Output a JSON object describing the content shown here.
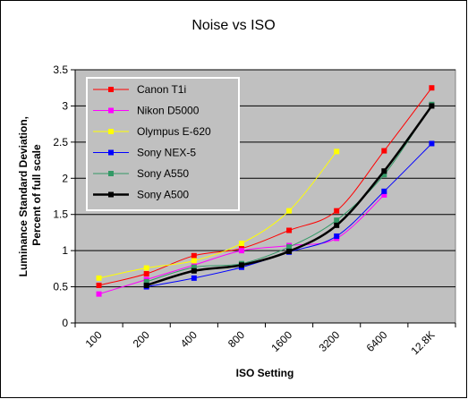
{
  "chart_data": {
    "type": "line",
    "title": "Noise vs ISO",
    "xlabel": "ISO Setting",
    "ylabel": "Luminance Standard Deviation, Percent of full scale",
    "ylabel_lines": [
      "Luminance Standard Deviation,",
      "Percent of full scale"
    ],
    "categories": [
      "100",
      "200",
      "400",
      "800",
      "1600",
      "3200",
      "6400",
      "12.8K"
    ],
    "ylim": [
      0,
      3.5
    ],
    "yticks": [
      "0",
      "0.5",
      "1",
      "1.5",
      "2",
      "2.5",
      "3",
      "3.5"
    ],
    "grid": true,
    "legend": "top-left",
    "series": [
      {
        "name": "Canon T1i",
        "color": "#ff0000",
        "line_width": 1,
        "marker": "square",
        "x": [
          0,
          1,
          2,
          3,
          4,
          5,
          6,
          7
        ],
        "values": [
          0.52,
          0.68,
          0.93,
          1.03,
          1.28,
          1.55,
          2.38,
          3.25
        ]
      },
      {
        "name": "Nikon D5000",
        "color": "#ff00ff",
        "line_width": 1,
        "marker": "square",
        "x": [
          0,
          1,
          2,
          3,
          4,
          5,
          6
        ],
        "values": [
          0.4,
          0.6,
          0.8,
          1.0,
          1.07,
          1.17,
          1.77
        ]
      },
      {
        "name": "Olympus E-620",
        "color": "#ffff00",
        "line_width": 1,
        "marker": "square",
        "x": [
          0,
          1,
          2,
          3,
          4,
          5
        ],
        "values": [
          0.62,
          0.76,
          0.86,
          1.1,
          1.55,
          2.37
        ]
      },
      {
        "name": "Sony NEX-5",
        "color": "#0000ff",
        "line_width": 1,
        "marker": "square",
        "x": [
          1,
          2,
          3,
          4,
          5,
          6,
          7
        ],
        "values": [
          0.5,
          0.62,
          0.77,
          0.98,
          1.2,
          1.82,
          2.48
        ]
      },
      {
        "name": "Sony A550",
        "color": "#339966",
        "line_width": 1,
        "marker": "square",
        "x": [
          1,
          2,
          3,
          4,
          5,
          6,
          7
        ],
        "values": [
          0.57,
          0.77,
          0.82,
          1.05,
          1.42,
          2.05,
          3.02
        ]
      },
      {
        "name": "Sony A500",
        "color": "#000000",
        "line_width": 2.5,
        "marker": "square",
        "x": [
          1,
          2,
          3,
          4,
          5,
          6,
          7
        ],
        "values": [
          0.52,
          0.72,
          0.8,
          0.99,
          1.35,
          2.1,
          3.0
        ]
      }
    ]
  }
}
